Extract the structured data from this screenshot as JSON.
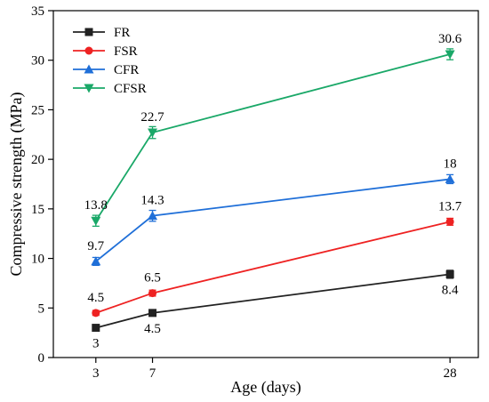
{
  "chart_data": {
    "type": "line",
    "xlabel": "Age (days)",
    "ylabel": "Compressive strength (MPa)",
    "x": [
      3,
      7,
      28
    ],
    "xticks": [
      "3",
      "7",
      "28"
    ],
    "xlim": [
      0,
      30
    ],
    "ylim": [
      0,
      35
    ],
    "yticks": [
      0,
      5,
      10,
      15,
      20,
      25,
      30,
      35
    ],
    "grid": false,
    "legend_position": "top-left",
    "series": [
      {
        "name": "FR",
        "color": "#222222",
        "marker": "square",
        "values": [
          3.0,
          4.5,
          8.4
        ],
        "errors": [
          0.25,
          0.2,
          0.4
        ],
        "labels": [
          "3",
          "4.5",
          "8.4"
        ],
        "label_placement": [
          "below",
          "below",
          "below"
        ]
      },
      {
        "name": "FSR",
        "color": "#ee2222",
        "marker": "circle",
        "values": [
          4.5,
          6.5,
          13.7
        ],
        "errors": [
          0.25,
          0.3,
          0.35
        ],
        "labels": [
          "4.5",
          "6.5",
          "13.7"
        ],
        "label_placement": [
          "above",
          "above",
          "above"
        ]
      },
      {
        "name": "CFR",
        "color": "#1f6fd8",
        "marker": "triangle-up",
        "values": [
          9.7,
          14.3,
          18.0
        ],
        "errors": [
          0.4,
          0.55,
          0.45
        ],
        "labels": [
          "9.7",
          "14.3",
          "18"
        ],
        "label_placement": [
          "above",
          "above",
          "above"
        ]
      },
      {
        "name": "CFSR",
        "color": "#1aa868",
        "marker": "triangle-down",
        "values": [
          13.8,
          22.7,
          30.6
        ],
        "errors": [
          0.55,
          0.6,
          0.55
        ],
        "labels": [
          "13.8",
          "22.7",
          "30.6"
        ],
        "label_placement": [
          "above",
          "above",
          "above"
        ]
      }
    ]
  }
}
